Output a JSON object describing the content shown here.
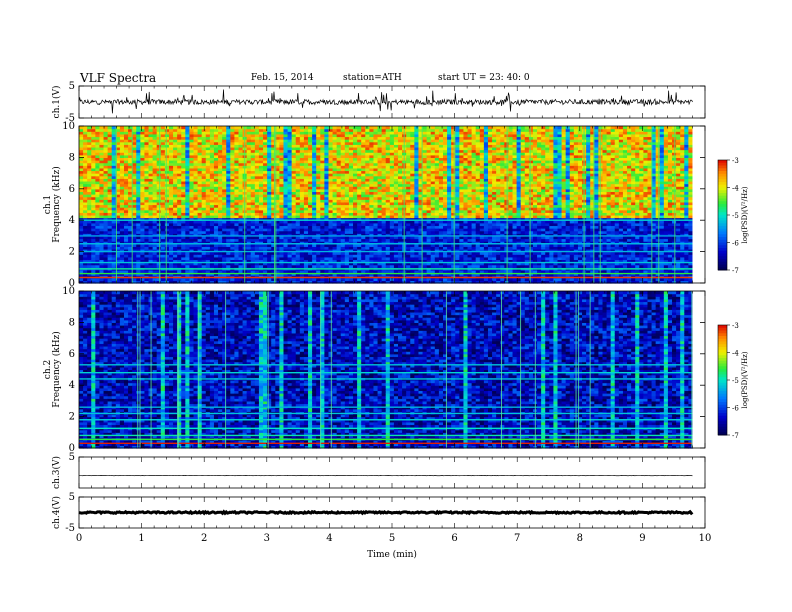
{
  "header": {
    "title": "VLF  Spectra",
    "date": "Feb. 15, 2014",
    "station": "station=ATH",
    "start": "start  UT  =   23: 40: 0"
  },
  "chart_data": [
    {
      "type": "line",
      "ylabel": "ch.1(V)",
      "ylim": [
        -5,
        5
      ],
      "yticks": [
        "5",
        "-5"
      ],
      "baseline": 0,
      "color": "#000000"
    },
    {
      "type": "heatmap",
      "ylabel": "Frequency  (kHz)",
      "channel_label": "ch.1",
      "ylim": [
        0,
        10
      ],
      "yticks": [
        "10",
        "8",
        "6",
        "4",
        "2",
        "0"
      ],
      "colorbar": {
        "label": "log(PSD)(V²/Hz)",
        "range": [
          -7,
          -3
        ],
        "ticks": [
          "-3",
          "-4",
          "-5",
          "-6",
          "-7"
        ]
      },
      "dominant_level": "high (-4 to -3) above ~4 kHz, low (-7 to -6) below ~4 kHz"
    },
    {
      "type": "heatmap",
      "ylabel": "Frequency  (kHz)",
      "channel_label": "ch.2",
      "ylim": [
        0,
        10
      ],
      "yticks": [
        "10",
        "8",
        "6",
        "4",
        "2",
        "0"
      ],
      "colorbar": {
        "label": "log(PSD)(V²/Hz)",
        "range": [
          -7,
          -3
        ],
        "ticks": [
          "-3",
          "-4",
          "-5",
          "-6",
          "-7"
        ]
      },
      "dominant_level": "mostly low (-7 to -6) with green harmonic lines"
    },
    {
      "type": "line",
      "ylabel": "ch.3(V)",
      "ylim": [
        -5,
        5
      ],
      "yticks": [
        "5"
      ],
      "baseline": -1,
      "color": "#000000"
    },
    {
      "type": "line",
      "ylabel": "ch.4(V)",
      "ylim": [
        -5,
        5
      ],
      "yticks": [
        "5",
        "-5"
      ],
      "baseline": 0,
      "color": "#000000"
    }
  ],
  "x_axis": {
    "label": "Time  (min)",
    "range": [
      0,
      10
    ],
    "ticks": [
      "0",
      "1",
      "2",
      "3",
      "4",
      "5",
      "6",
      "7",
      "8",
      "9",
      "10"
    ],
    "data_end": 9.8
  }
}
